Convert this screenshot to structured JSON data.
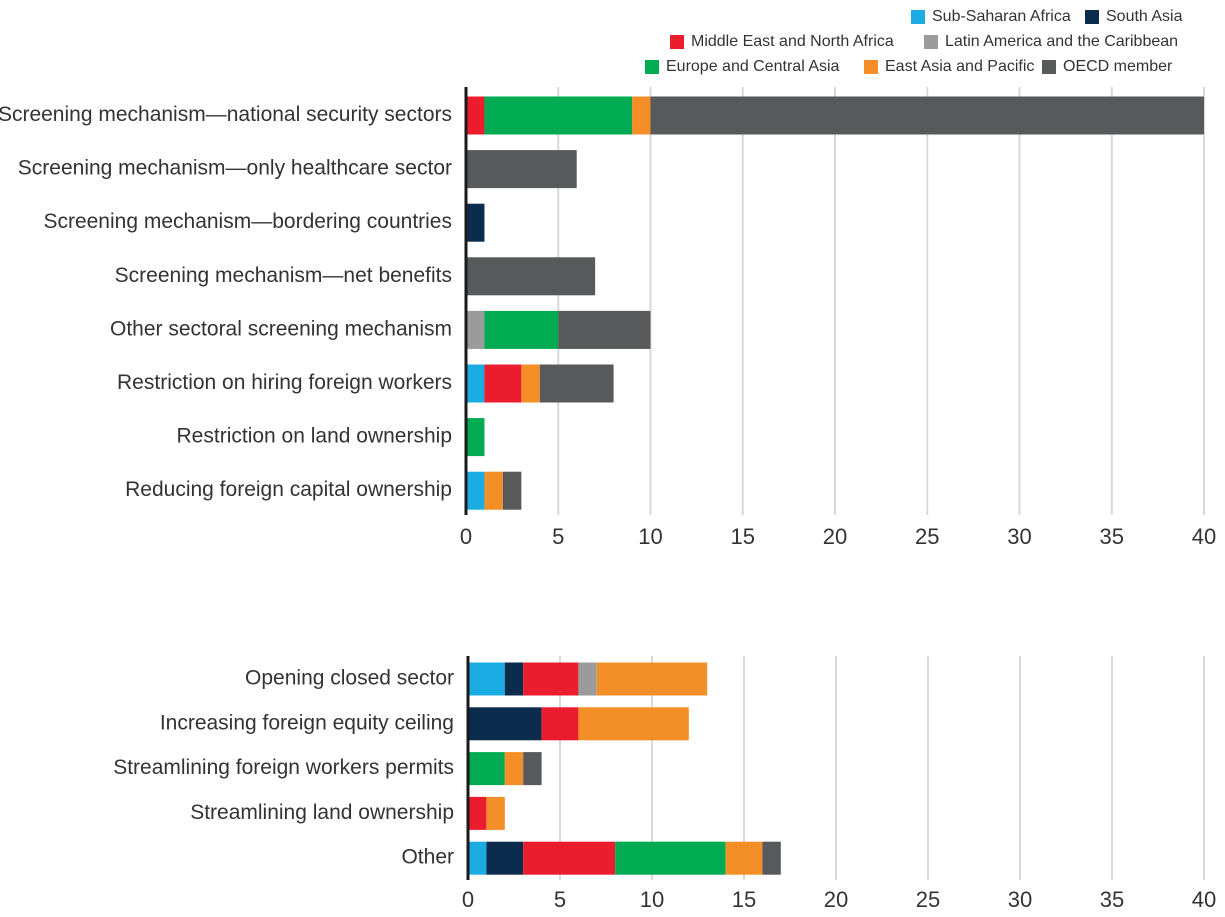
{
  "legend": [
    {
      "name": "Sub-Saharan Africa",
      "color": "#1AACE3"
    },
    {
      "name": "South Asia",
      "color": "#0C2C4E"
    },
    {
      "name": "Middle East and North Africa",
      "color": "#EB1C2D"
    },
    {
      "name": "Latin America and the Caribbean",
      "color": "#9B9B9B"
    },
    {
      "name": "Europe and Central Asia",
      "color": "#00AB51"
    },
    {
      "name": "East Asia and Pacific",
      "color": "#F48F28"
    },
    {
      "name": "OECD member",
      "color": "#58595B"
    }
  ],
  "chart_data": [
    {
      "type": "bar",
      "orientation": "horizontal",
      "stacked": true,
      "categories": [
        "Screening mechanism—national security sectors",
        "Screening mechanism—only healthcare sector",
        "Screening mechanism—bordering countries",
        "Screening mechanism—net benefits",
        "Other sectoral screening mechanism",
        "Restriction on hiring foreign workers",
        "Restriction on land ownership",
        "Reducing foreign capital ownership"
      ],
      "series": [
        {
          "name": "Sub-Saharan Africa",
          "values": [
            0,
            0,
            0,
            0,
            0,
            1,
            0,
            1
          ]
        },
        {
          "name": "South Asia",
          "values": [
            0,
            0,
            1,
            0,
            0,
            0,
            0,
            0
          ]
        },
        {
          "name": "Middle East and North Africa",
          "values": [
            1,
            0,
            0,
            0,
            0,
            2,
            0,
            0
          ]
        },
        {
          "name": "Latin America and the Caribbean",
          "values": [
            0,
            0,
            0,
            0,
            1,
            0,
            0,
            0
          ]
        },
        {
          "name": "Europe and Central Asia",
          "values": [
            8,
            0,
            0,
            0,
            4,
            0,
            1,
            0
          ]
        },
        {
          "name": "East Asia and Pacific",
          "values": [
            1,
            0,
            0,
            0,
            0,
            1,
            0,
            1
          ]
        },
        {
          "name": "OECD member",
          "values": [
            30,
            6,
            0,
            7,
            5,
            4,
            0,
            1
          ]
        }
      ],
      "xlim": [
        0,
        40
      ],
      "xticks": [
        0,
        5,
        10,
        15,
        20,
        25,
        30,
        35,
        40
      ],
      "grid": true
    },
    {
      "type": "bar",
      "orientation": "horizontal",
      "stacked": true,
      "categories": [
        "Opening closed sector",
        "Increasing foreign equity ceiling",
        "Streamlining foreign workers permits",
        "Streamlining land ownership",
        "Other"
      ],
      "series": [
        {
          "name": "Sub-Saharan Africa",
          "values": [
            2,
            0,
            0,
            0,
            1
          ]
        },
        {
          "name": "South Asia",
          "values": [
            1,
            4,
            0,
            0,
            2
          ]
        },
        {
          "name": "Middle East and North Africa",
          "values": [
            3,
            2,
            0,
            1,
            5
          ]
        },
        {
          "name": "Latin America and the Caribbean",
          "values": [
            1,
            0,
            0,
            0,
            0
          ]
        },
        {
          "name": "Europe and Central Asia",
          "values": [
            0,
            0,
            2,
            0,
            6
          ]
        },
        {
          "name": "East Asia and Pacific",
          "values": [
            6,
            6,
            1,
            1,
            2
          ]
        },
        {
          "name": "OECD member",
          "values": [
            0,
            0,
            1,
            0,
            1
          ]
        }
      ],
      "xlim": [
        0,
        40
      ],
      "xticks": [
        0,
        5,
        10,
        15,
        20,
        25,
        30,
        35,
        40
      ],
      "grid": true
    }
  ]
}
